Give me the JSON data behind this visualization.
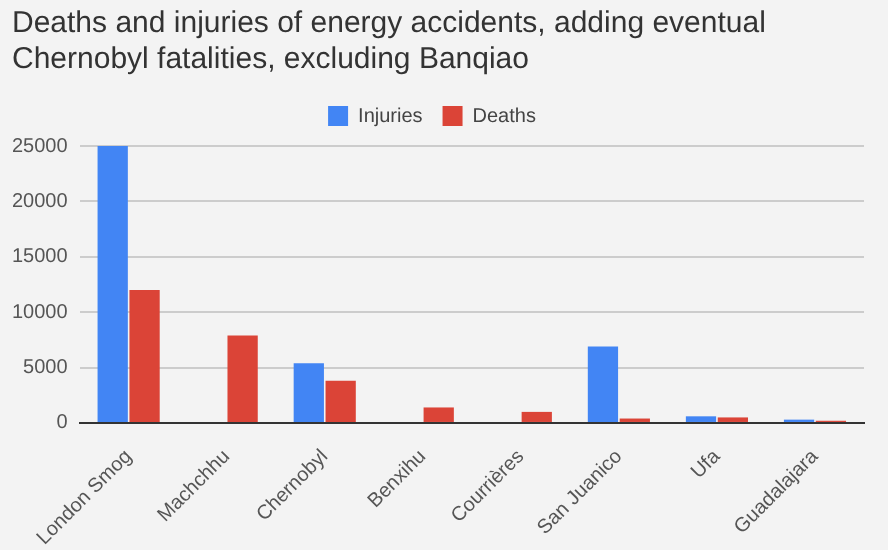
{
  "chart_data": {
    "type": "bar",
    "title": "Deaths and injuries of energy accidents, adding eventual Chernobyl fatalities, excluding Banqiao",
    "categories": [
      "London Smog",
      "Machchhu",
      "Chernobyl",
      "Benxihu",
      "Courrières",
      "San Juanico",
      "Ufa",
      "Guadalajara"
    ],
    "series": [
      {
        "name": "Injuries",
        "color": "#4285f4",
        "values": [
          25000,
          null,
          5400,
          null,
          null,
          6900,
          600,
          300
        ]
      },
      {
        "name": "Deaths",
        "color": "#db4437",
        "values": [
          12000,
          7900,
          3800,
          1400,
          1000,
          400,
          500,
          200
        ]
      }
    ],
    "ylim": [
      0,
      25000
    ],
    "yticks": [
      0,
      5000,
      10000,
      15000,
      20000,
      25000
    ],
    "grid": "y",
    "legend": "top"
  }
}
